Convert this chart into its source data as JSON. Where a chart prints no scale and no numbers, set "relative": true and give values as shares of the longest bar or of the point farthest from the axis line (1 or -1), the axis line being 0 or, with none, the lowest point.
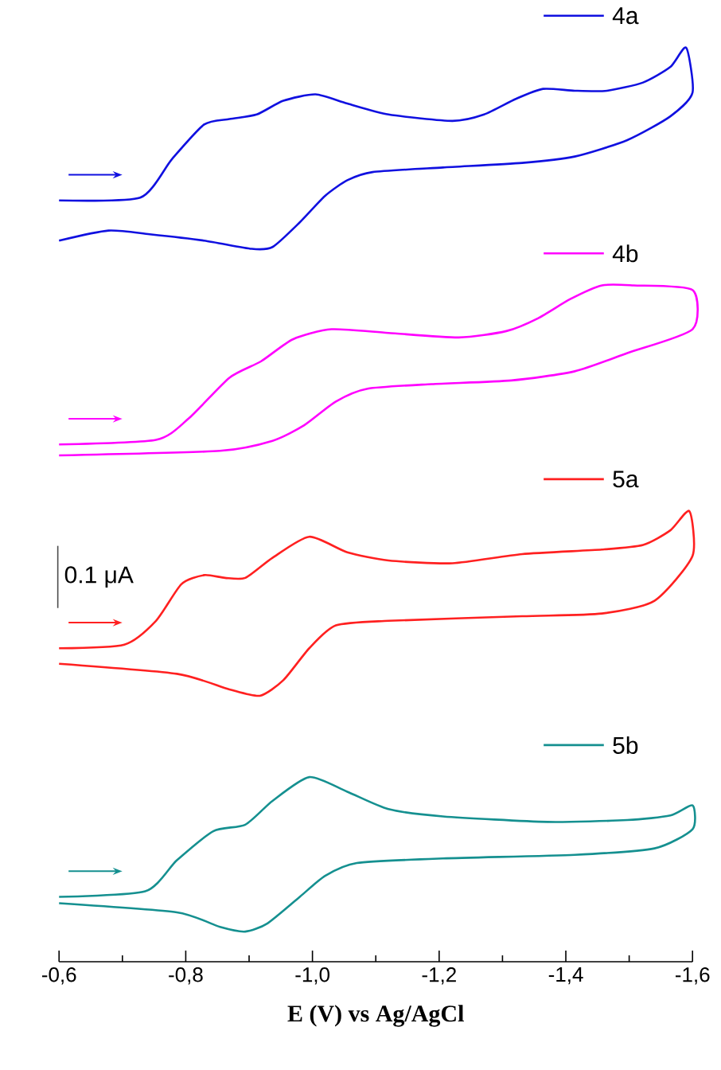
{
  "chart_data": {
    "type": "line",
    "relative": true,
    "xlabel": "E (V) vs Ag/AgCl",
    "xlim": [
      -0.6,
      -1.6
    ],
    "xticks": [
      {
        "value": -0.6,
        "label": "-0,6"
      },
      {
        "value": -0.7,
        "label": null
      },
      {
        "value": -0.8,
        "label": "-0,8"
      },
      {
        "value": -0.9,
        "label": null
      },
      {
        "value": -1.0,
        "label": "-1,0"
      },
      {
        "value": -1.1,
        "label": null
      },
      {
        "value": -1.2,
        "label": "-1,2"
      },
      {
        "value": -1.3,
        "label": null
      },
      {
        "value": -1.4,
        "label": "-1,4"
      },
      {
        "value": -1.5,
        "label": null
      },
      {
        "value": -1.6,
        "label": "-1,6"
      }
    ],
    "annotations": [
      "0.1 μA"
    ],
    "legend": "right",
    "series": [
      {
        "name": "4a",
        "color": "#1010e0",
        "x": [
          -0.6,
          -0.728,
          -0.778,
          -0.829,
          -0.869,
          -0.912,
          -0.954,
          -1.005,
          -1.055,
          -1.12,
          -1.221,
          -1.271,
          -1.321,
          -1.364,
          -1.414,
          -1.465,
          -1.522,
          -1.565,
          -1.59,
          -1.6,
          -1.565,
          -1.497,
          -1.414,
          -1.331,
          -1.206,
          -1.095,
          -1.055,
          -1.02,
          -0.98,
          -0.937,
          -0.904,
          -0.829,
          -0.743,
          -0.678,
          -0.6
        ],
        "values": [
          0.833,
          0.836,
          0.878,
          0.916,
          0.922,
          0.927,
          0.942,
          0.949,
          0.939,
          0.927,
          0.92,
          0.927,
          0.944,
          0.955,
          0.953,
          0.953,
          0.962,
          0.979,
          1.0,
          0.951,
          0.925,
          0.899,
          0.881,
          0.874,
          0.869,
          0.864,
          0.855,
          0.838,
          0.809,
          0.782,
          0.78,
          0.789,
          0.796,
          0.8,
          0.789
        ]
      },
      {
        "name": "4b",
        "color": "#ff00ff",
        "x": [
          -0.6,
          -0.753,
          -0.804,
          -0.869,
          -0.919,
          -0.969,
          -1.03,
          -1.12,
          -1.231,
          -1.306,
          -1.356,
          -1.407,
          -1.457,
          -1.507,
          -1.6,
          -1.6,
          -1.497,
          -1.414,
          -1.314,
          -1.188,
          -1.087,
          -1.037,
          -0.987,
          -0.937,
          -0.854,
          -0.6
        ],
        "values": [
          0.566,
          0.571,
          0.594,
          0.639,
          0.657,
          0.681,
          0.692,
          0.688,
          0.683,
          0.69,
          0.704,
          0.725,
          0.74,
          0.74,
          0.735,
          0.692,
          0.666,
          0.646,
          0.636,
          0.632,
          0.627,
          0.613,
          0.587,
          0.57,
          0.559,
          0.554
        ]
      },
      {
        "name": "5a",
        "color": "#ff2020",
        "x": [
          -0.6,
          -0.703,
          -0.753,
          -0.793,
          -0.829,
          -0.862,
          -0.894,
          -0.937,
          -0.995,
          -1.055,
          -1.12,
          -1.221,
          -1.331,
          -1.457,
          -1.522,
          -1.565,
          -1.595,
          -1.6,
          -1.54,
          -1.457,
          -1.331,
          -1.12,
          -1.037,
          -0.995,
          -0.954,
          -0.917,
          -0.869,
          -0.786,
          -0.6
        ],
        "values": [
          0.343,
          0.347,
          0.373,
          0.413,
          0.423,
          0.42,
          0.42,
          0.442,
          0.465,
          0.448,
          0.439,
          0.436,
          0.446,
          0.451,
          0.456,
          0.472,
          0.493,
          0.444,
          0.395,
          0.381,
          0.378,
          0.373,
          0.368,
          0.343,
          0.308,
          0.291,
          0.298,
          0.315,
          0.326
        ]
      },
      {
        "name": "5b",
        "color": "#159090",
        "x": [
          -0.6,
          -0.736,
          -0.786,
          -0.844,
          -0.894,
          -0.937,
          -0.995,
          -1.055,
          -1.12,
          -1.206,
          -1.371,
          -1.497,
          -1.565,
          -1.6,
          -1.6,
          -1.54,
          -1.414,
          -1.206,
          -1.07,
          -1.02,
          -0.98,
          -0.929,
          -0.894,
          -0.854,
          -0.786,
          -0.6
        ],
        "values": [
          0.071,
          0.077,
          0.111,
          0.143,
          0.15,
          0.176,
          0.202,
          0.186,
          0.167,
          0.159,
          0.153,
          0.155,
          0.16,
          0.171,
          0.145,
          0.124,
          0.117,
          0.113,
          0.108,
          0.094,
          0.071,
          0.042,
          0.033,
          0.038,
          0.054,
          0.064
        ]
      }
    ]
  }
}
